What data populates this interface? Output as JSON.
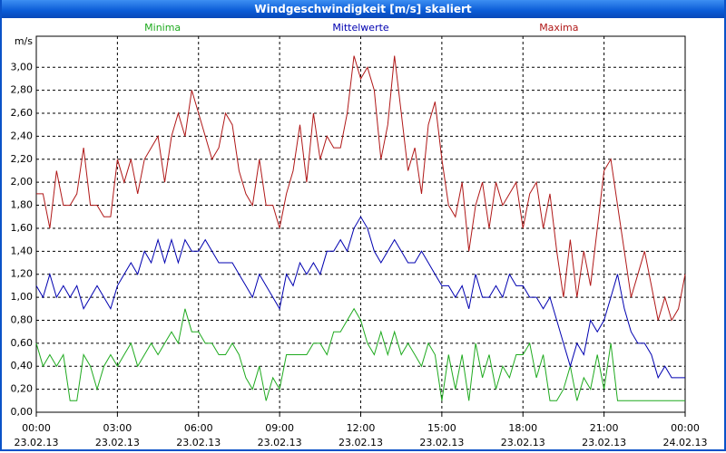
{
  "title": "Windgeschwindigkeit [m/s] skaliert",
  "chart_data": {
    "type": "line",
    "y_unit": "m/s",
    "legend": "top",
    "grid": true,
    "x": [
      0,
      0.25,
      0.5,
      0.75,
      1,
      1.25,
      1.5,
      1.75,
      2,
      2.25,
      2.5,
      2.75,
      3,
      3.25,
      3.5,
      3.75,
      4,
      4.25,
      4.5,
      4.75,
      5,
      5.25,
      5.5,
      5.75,
      6,
      6.25,
      6.5,
      6.75,
      7,
      7.25,
      7.5,
      7.75,
      8,
      8.25,
      8.5,
      8.75,
      9,
      9.25,
      9.5,
      9.75,
      10,
      10.25,
      10.5,
      10.75,
      11,
      11.25,
      11.5,
      11.75,
      12,
      12.25,
      12.5,
      12.75,
      13,
      13.25,
      13.5,
      13.75,
      14,
      14.25,
      14.5,
      14.75,
      15,
      15.25,
      15.5,
      15.75,
      16,
      16.25,
      16.5,
      16.75,
      17,
      17.25,
      17.5,
      17.75,
      18,
      18.25,
      18.5,
      18.75,
      19,
      19.25,
      19.5,
      19.75,
      20,
      20.25,
      20.5,
      20.75,
      21,
      21.25,
      21.5,
      21.75,
      22,
      22.25,
      22.5,
      22.75,
      23,
      23.25,
      23.5,
      23.75,
      24
    ],
    "xlim": [
      0,
      24
    ],
    "xticks": [
      {
        "value": 0,
        "label": "00:00"
      },
      {
        "value": 3,
        "label": "03:00"
      },
      {
        "value": 6,
        "label": "06:00"
      },
      {
        "value": 9,
        "label": "09:00"
      },
      {
        "value": 12,
        "label": "12:00"
      },
      {
        "value": 15,
        "label": "15:00"
      },
      {
        "value": 18,
        "label": "18:00"
      },
      {
        "value": 21,
        "label": "21:00"
      },
      {
        "value": 24,
        "label": "00:00"
      }
    ],
    "xtick_dates": [
      "23.02.13",
      "23.02.13",
      "23.02.13",
      "23.02.13",
      "23.02.13",
      "23.02.13",
      "23.02.13",
      "23.02.13",
      "24.02.13"
    ],
    "ylim": [
      0,
      3.27
    ],
    "yticks": [
      {
        "value": 0,
        "label": "0,00"
      },
      {
        "value": 0.2,
        "label": "0,20"
      },
      {
        "value": 0.4,
        "label": "0,40"
      },
      {
        "value": 0.6,
        "label": "0,60"
      },
      {
        "value": 0.8,
        "label": "0,80"
      },
      {
        "value": 1,
        "label": "1,00"
      },
      {
        "value": 1.2,
        "label": "1,20"
      },
      {
        "value": 1.4,
        "label": "1,40"
      },
      {
        "value": 1.6,
        "label": "1,60"
      },
      {
        "value": 1.8,
        "label": "1,80"
      },
      {
        "value": 2,
        "label": "2,00"
      },
      {
        "value": 2.2,
        "label": "2,20"
      },
      {
        "value": 2.4,
        "label": "2,40"
      },
      {
        "value": 2.6,
        "label": "2,60"
      },
      {
        "value": 2.8,
        "label": "2,80"
      },
      {
        "value": 3,
        "label": "3,00"
      }
    ],
    "series": [
      {
        "name": "Minima",
        "color": "#1faa1f",
        "values": [
          0.6,
          0.4,
          0.5,
          0.4,
          0.5,
          0.1,
          0.1,
          0.5,
          0.4,
          0.2,
          0.4,
          0.5,
          0.4,
          0.5,
          0.6,
          0.4,
          0.5,
          0.6,
          0.5,
          0.6,
          0.7,
          0.6,
          0.9,
          0.7,
          0.7,
          0.6,
          0.6,
          0.5,
          0.5,
          0.6,
          0.5,
          0.3,
          0.2,
          0.4,
          0.1,
          0.3,
          0.2,
          0.5,
          0.5,
          0.5,
          0.5,
          0.6,
          0.6,
          0.5,
          0.7,
          0.7,
          0.8,
          0.9,
          0.8,
          0.6,
          0.5,
          0.7,
          0.5,
          0.7,
          0.5,
          0.6,
          0.5,
          0.4,
          0.6,
          0.5,
          0.1,
          0.5,
          0.2,
          0.5,
          0.1,
          0.6,
          0.3,
          0.5,
          0.2,
          0.4,
          0.3,
          0.5,
          0.5,
          0.6,
          0.3,
          0.5,
          0.1,
          0.1,
          0.2,
          0.4,
          0.1,
          0.3,
          0.2,
          0.5,
          0.2,
          0.6,
          0.1,
          0.1,
          0.1,
          0.1,
          0.1,
          0.1,
          0.1,
          0.1,
          0.1,
          0.1,
          0.1
        ]
      },
      {
        "name": "Mittelwerte",
        "color": "#0000b0",
        "values": [
          1.1,
          1.0,
          1.2,
          1.0,
          1.1,
          1.0,
          1.1,
          0.9,
          1.0,
          1.1,
          1.0,
          0.9,
          1.1,
          1.2,
          1.3,
          1.2,
          1.4,
          1.3,
          1.5,
          1.3,
          1.5,
          1.3,
          1.5,
          1.4,
          1.4,
          1.5,
          1.4,
          1.3,
          1.3,
          1.3,
          1.2,
          1.1,
          1.0,
          1.2,
          1.1,
          1.0,
          0.9,
          1.2,
          1.1,
          1.3,
          1.2,
          1.3,
          1.2,
          1.4,
          1.4,
          1.5,
          1.4,
          1.6,
          1.7,
          1.6,
          1.4,
          1.3,
          1.4,
          1.5,
          1.4,
          1.3,
          1.3,
          1.4,
          1.3,
          1.2,
          1.1,
          1.1,
          1.0,
          1.1,
          0.9,
          1.2,
          1.0,
          1.0,
          1.1,
          1.0,
          1.2,
          1.1,
          1.1,
          1.0,
          1.0,
          0.9,
          1.0,
          0.8,
          0.6,
          0.4,
          0.6,
          0.5,
          0.8,
          0.7,
          0.8,
          1.0,
          1.2,
          0.9,
          0.7,
          0.6,
          0.6,
          0.5,
          0.3,
          0.4,
          0.3,
          0.3,
          0.3
        ]
      },
      {
        "name": "Maxima",
        "color": "#b01818",
        "values": [
          1.9,
          1.9,
          1.6,
          2.1,
          1.8,
          1.8,
          1.9,
          2.3,
          1.8,
          1.8,
          1.7,
          1.7,
          2.2,
          2.0,
          2.2,
          1.9,
          2.2,
          2.3,
          2.4,
          2.0,
          2.4,
          2.6,
          2.4,
          2.8,
          2.6,
          2.4,
          2.2,
          2.3,
          2.6,
          2.5,
          2.1,
          1.9,
          1.8,
          2.2,
          1.8,
          1.8,
          1.6,
          1.9,
          2.1,
          2.5,
          2.0,
          2.6,
          2.2,
          2.4,
          2.3,
          2.3,
          2.6,
          3.1,
          2.9,
          3.0,
          2.8,
          2.2,
          2.5,
          3.1,
          2.6,
          2.1,
          2.3,
          1.9,
          2.5,
          2.7,
          2.2,
          1.8,
          1.7,
          2.0,
          1.4,
          1.8,
          2.0,
          1.6,
          2.0,
          1.8,
          1.9,
          2.0,
          1.6,
          1.9,
          2.0,
          1.6,
          1.9,
          1.4,
          1.0,
          1.5,
          1.0,
          1.4,
          1.1,
          1.6,
          2.1,
          2.2,
          1.8,
          1.4,
          1.0,
          1.2,
          1.4,
          1.1,
          0.8,
          1.0,
          0.8,
          0.9,
          1.2
        ]
      }
    ]
  }
}
